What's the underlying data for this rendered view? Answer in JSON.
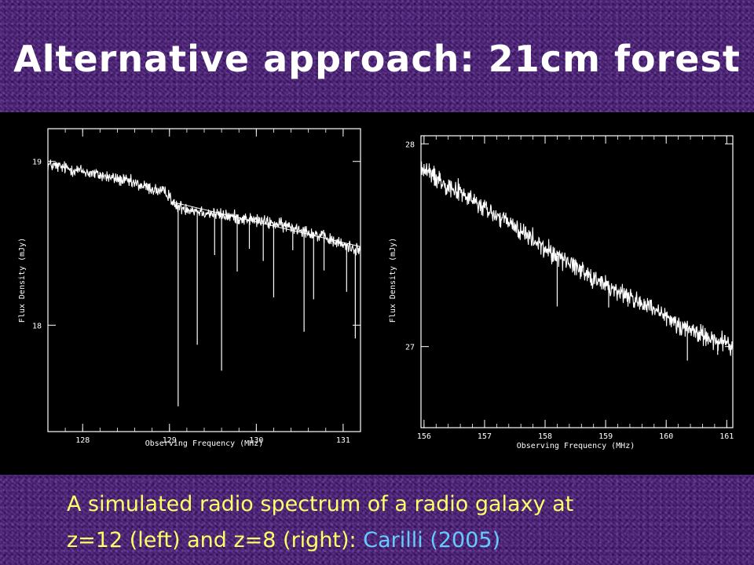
{
  "slide": {
    "title": "Alternative approach: 21cm forest",
    "caption_line1": "A simulated radio spectrum of a radio galaxy at",
    "caption_line2_prefix": "z=12 (left) and z=8 (right): ",
    "caption_citation": "Carilli (2005)"
  },
  "colors": {
    "background": "#4b1f78",
    "title": "#ffffff",
    "caption": "#ffff66",
    "citation": "#66ccff",
    "plot_background": "#000000",
    "plot_ink": "#ffffff"
  },
  "chart_data": [
    {
      "type": "line",
      "xlabel": "Observing Frequency (MHz)",
      "ylabel": "Flux Density (mJy)",
      "xlim": [
        127.6,
        131.2
      ],
      "ylim": [
        17.35,
        19.2
      ],
      "xticks": [
        128,
        129,
        130,
        131
      ],
      "yticks": [
        18,
        19
      ],
      "xtick_labels": [
        "128",
        "129",
        "130",
        "131"
      ],
      "ytick_labels": [
        "18",
        "19"
      ],
      "continuum_line": {
        "x": [
          129.05,
          131.2
        ],
        "y": [
          18.75,
          18.48
        ]
      },
      "series": [
        {
          "x": [
            127.6,
            128.0,
            128.5,
            129.0,
            129.05,
            129.5,
            130.0,
            130.5,
            131.0,
            131.2
          ],
          "y": [
            18.98,
            18.94,
            18.88,
            18.8,
            18.73,
            18.68,
            18.64,
            18.59,
            18.49,
            18.46
          ],
          "noise_sigma": 0.02
        }
      ],
      "absorption_lines": [
        {
          "x": 129.1,
          "depth": 1.22
        },
        {
          "x": 129.32,
          "depth": 0.82
        },
        {
          "x": 129.52,
          "depth": 0.25
        },
        {
          "x": 129.6,
          "depth": 0.95
        },
        {
          "x": 129.78,
          "depth": 0.33
        },
        {
          "x": 129.92,
          "depth": 0.18
        },
        {
          "x": 130.08,
          "depth": 0.24
        },
        {
          "x": 130.2,
          "depth": 0.45
        },
        {
          "x": 130.42,
          "depth": 0.14
        },
        {
          "x": 130.55,
          "depth": 0.62
        },
        {
          "x": 130.66,
          "depth": 0.4
        },
        {
          "x": 130.78,
          "depth": 0.2
        },
        {
          "x": 131.04,
          "depth": 0.28
        },
        {
          "x": 131.14,
          "depth": 0.55
        }
      ]
    },
    {
      "type": "line",
      "xlabel": "Observing Frequency (MHz)",
      "ylabel": "Flux Density (mJy)",
      "xlim": [
        155.95,
        161.1
      ],
      "ylim": [
        26.6,
        28.04
      ],
      "xticks": [
        156,
        157,
        158,
        159,
        160,
        161
      ],
      "yticks": [
        27,
        28
      ],
      "xtick_labels": [
        "156",
        "157",
        "158",
        "159",
        "160",
        "161"
      ],
      "ytick_labels": [
        "27",
        "28"
      ],
      "series": [
        {
          "x": [
            155.95,
            156.5,
            157.0,
            157.5,
            158.0,
            158.5,
            159.0,
            159.5,
            160.0,
            160.5,
            161.1
          ],
          "y": [
            27.88,
            27.78,
            27.68,
            27.59,
            27.48,
            27.4,
            27.3,
            27.23,
            27.14,
            27.07,
            27.0
          ],
          "noise_sigma": 0.025
        }
      ],
      "absorption_lines": [
        {
          "x": 158.2,
          "depth": 0.25
        },
        {
          "x": 159.05,
          "depth": 0.1
        },
        {
          "x": 160.35,
          "depth": 0.16
        },
        {
          "x": 160.85,
          "depth": 0.07
        }
      ]
    }
  ]
}
